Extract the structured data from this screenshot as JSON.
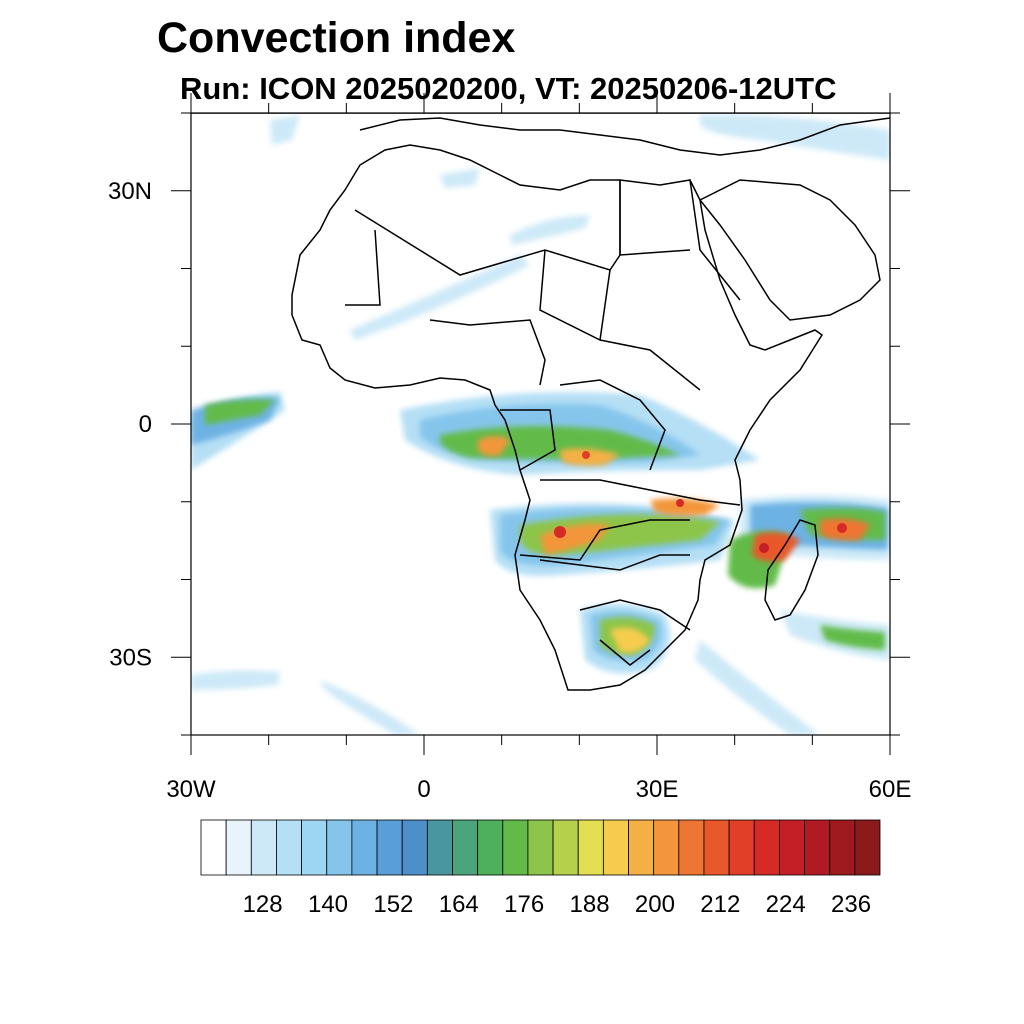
{
  "title": "Convection index",
  "subtitle": "Run: ICON 2025020200,  VT: 20250206-12UTC",
  "map": {
    "lon_range": [
      -30,
      60
    ],
    "lat_range": [
      -40,
      40
    ],
    "y_tick_labels": [
      {
        "lat": 30,
        "label": "30N"
      },
      {
        "lat": 0,
        "label": "0"
      },
      {
        "lat": -30,
        "label": "30S"
      }
    ],
    "x_tick_labels": [
      {
        "lon": -30,
        "label": "30W"
      },
      {
        "lon": 0,
        "label": "0"
      },
      {
        "lon": 30,
        "label": "30E"
      },
      {
        "lon": 60,
        "label": "60E"
      }
    ]
  },
  "colorbar": {
    "tick_labels": [
      "128",
      "140",
      "152",
      "164",
      "176",
      "188",
      "200",
      "212",
      "224",
      "236"
    ],
    "colors": [
      "#ffffff",
      "#e8f4fc",
      "#cde9f8",
      "#b5dff5",
      "#9dd6f3",
      "#85c5ec",
      "#6db2e4",
      "#5a9ed8",
      "#4d8fc8",
      "#4a96a0",
      "#4aa57c",
      "#4eb05a",
      "#62bb49",
      "#8cc54a",
      "#b5d14c",
      "#e3df50",
      "#f6cc4e",
      "#f5b045",
      "#f3963b",
      "#ee7633",
      "#e9582c",
      "#e13f27",
      "#d52a26",
      "#c41f26",
      "#b01a24",
      "#9e1a1e",
      "#8b1a1a"
    ]
  }
}
